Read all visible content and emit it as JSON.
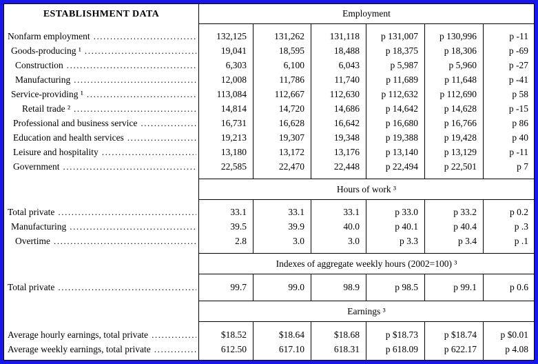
{
  "colors": {
    "frame": "#1717ea",
    "grid": "#000000",
    "background": "#ffffff"
  },
  "header": {
    "left": "ESTABLISHMENT DATA",
    "right": "Employment"
  },
  "sections": {
    "employment": {
      "rows": [
        {
          "label": "Nonfarm employment",
          "cells": [
            "132,125",
            "131,262",
            "131,118",
            "p 131,007",
            "p 130,996",
            "p -11"
          ]
        },
        {
          "label": "Goods-producing ¹",
          "cells": [
            "19,041",
            "18,595",
            "18,488",
            "p 18,375",
            "p 18,306",
            "p -69"
          ]
        },
        {
          "label": "Construction",
          "cells": [
            "6,303",
            "6,100",
            "6,043",
            "p 5,987",
            "p 5,960",
            "p -27"
          ]
        },
        {
          "label": "Manufacturing",
          "cells": [
            "12,008",
            "11,786",
            "11,740",
            "p 11,689",
            "p 11,648",
            "p -41"
          ]
        },
        {
          "label": "Service-providing ¹",
          "cells": [
            "113,084",
            "112,667",
            "112,630",
            "p 112,632",
            "p 112,690",
            "p 58"
          ]
        },
        {
          "label": "Retail trade ²",
          "cells": [
            "14,814",
            "14,720",
            "14,686",
            "p 14,642",
            "p 14,628",
            "p -15"
          ]
        },
        {
          "label": "Professional and business service",
          "cells": [
            "16,731",
            "16,628",
            "16,642",
            "p 16,680",
            "p 16,766",
            "p 86"
          ]
        },
        {
          "label": "Education and health services",
          "cells": [
            "19,213",
            "19,307",
            "19,348",
            "p 19,388",
            "p 19,428",
            "p 40"
          ]
        },
        {
          "label": "Leisure and hospitality",
          "cells": [
            "13,180",
            "13,172",
            "13,176",
            "p 13,140",
            "p 13,129",
            "p -11"
          ]
        },
        {
          "label": "Government",
          "cells": [
            "22,585",
            "22,470",
            "22,448",
            "p 22,494",
            "p 22,501",
            "p 7"
          ]
        }
      ]
    },
    "hours": {
      "band": "Hours of work ³",
      "rows": [
        {
          "label": "Total private",
          "cells": [
            "33.1",
            "33.1",
            "33.1",
            "p 33.0",
            "p 33.2",
            "p 0.2"
          ]
        },
        {
          "label": "Manufacturing",
          "cells": [
            "39.5",
            "39.9",
            "40.0",
            "p 40.1",
            "p 40.4",
            "p .3"
          ]
        },
        {
          "label": "Overtime",
          "cells": [
            "2.8",
            "3.0",
            "3.0",
            "p 3.3",
            "p 3.4",
            "p .1"
          ]
        }
      ]
    },
    "indexes": {
      "band": "Indexes of aggregate weekly hours (2002=100) ³",
      "rows": [
        {
          "label": "Total private",
          "cells": [
            "99.7",
            "99.0",
            "98.9",
            "p 98.5",
            "p 99.1",
            "p 0.6"
          ]
        }
      ]
    },
    "earnings": {
      "band": "Earnings ³",
      "rows": [
        {
          "label": "Average hourly earnings, total private",
          "cells": [
            "$18.52",
            "$18.64",
            "$18.68",
            "p $18.73",
            "p $18.74",
            "p $0.01"
          ]
        },
        {
          "label": "Average weekly earnings, total private",
          "cells": [
            "612.50",
            "617.10",
            "618.31",
            "p 618.09",
            "p 622.17",
            "p 4.08"
          ]
        }
      ]
    }
  }
}
